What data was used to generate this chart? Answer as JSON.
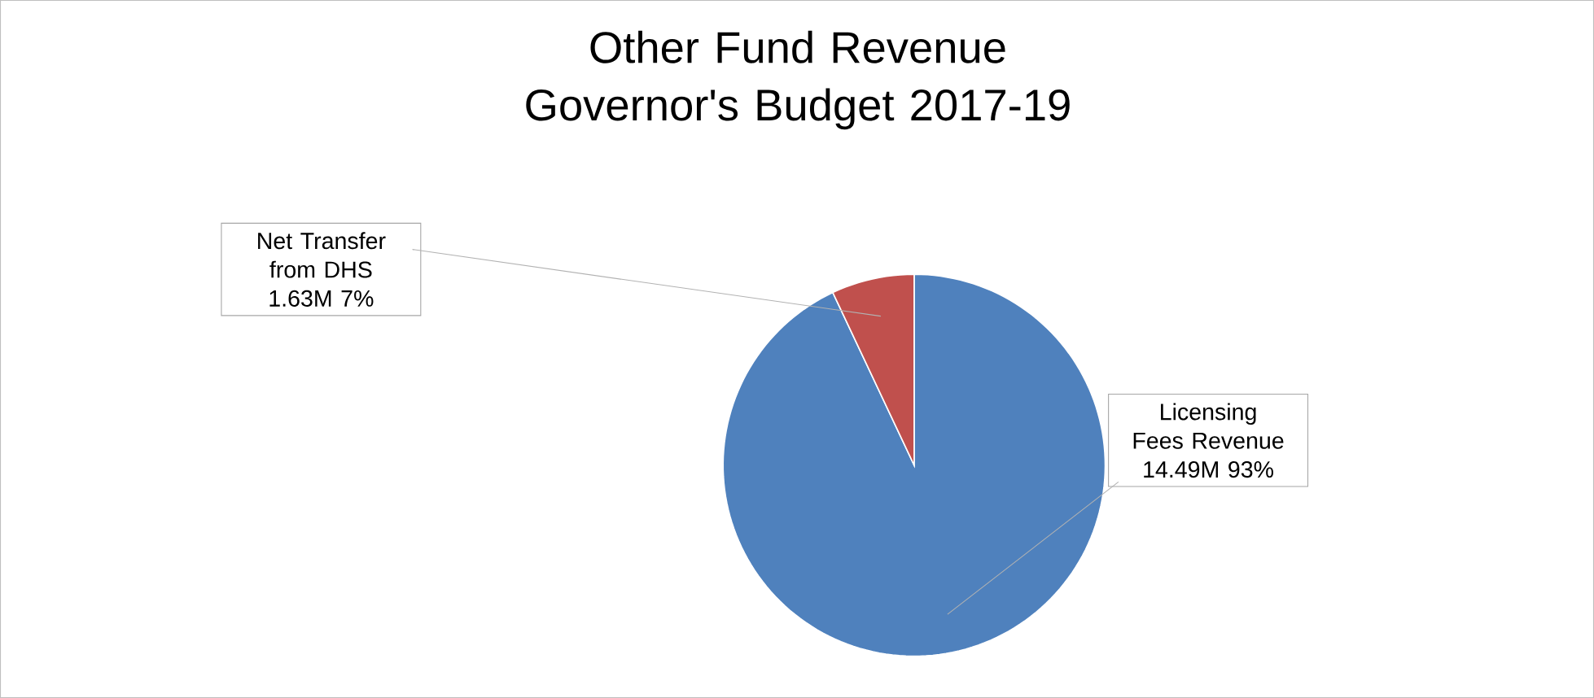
{
  "chart_data": {
    "type": "pie",
    "title": "Other Fund Revenue\nGovernor's Budget 2017-19",
    "categories": [
      "Licensing Fees Revenue",
      "Net Transfer from DHS"
    ],
    "values": [
      93,
      7
    ],
    "value_labels": [
      "14.49M 93%",
      "1.63M 7%"
    ],
    "colors": [
      "#4f81bd",
      "#c0504d"
    ]
  }
}
